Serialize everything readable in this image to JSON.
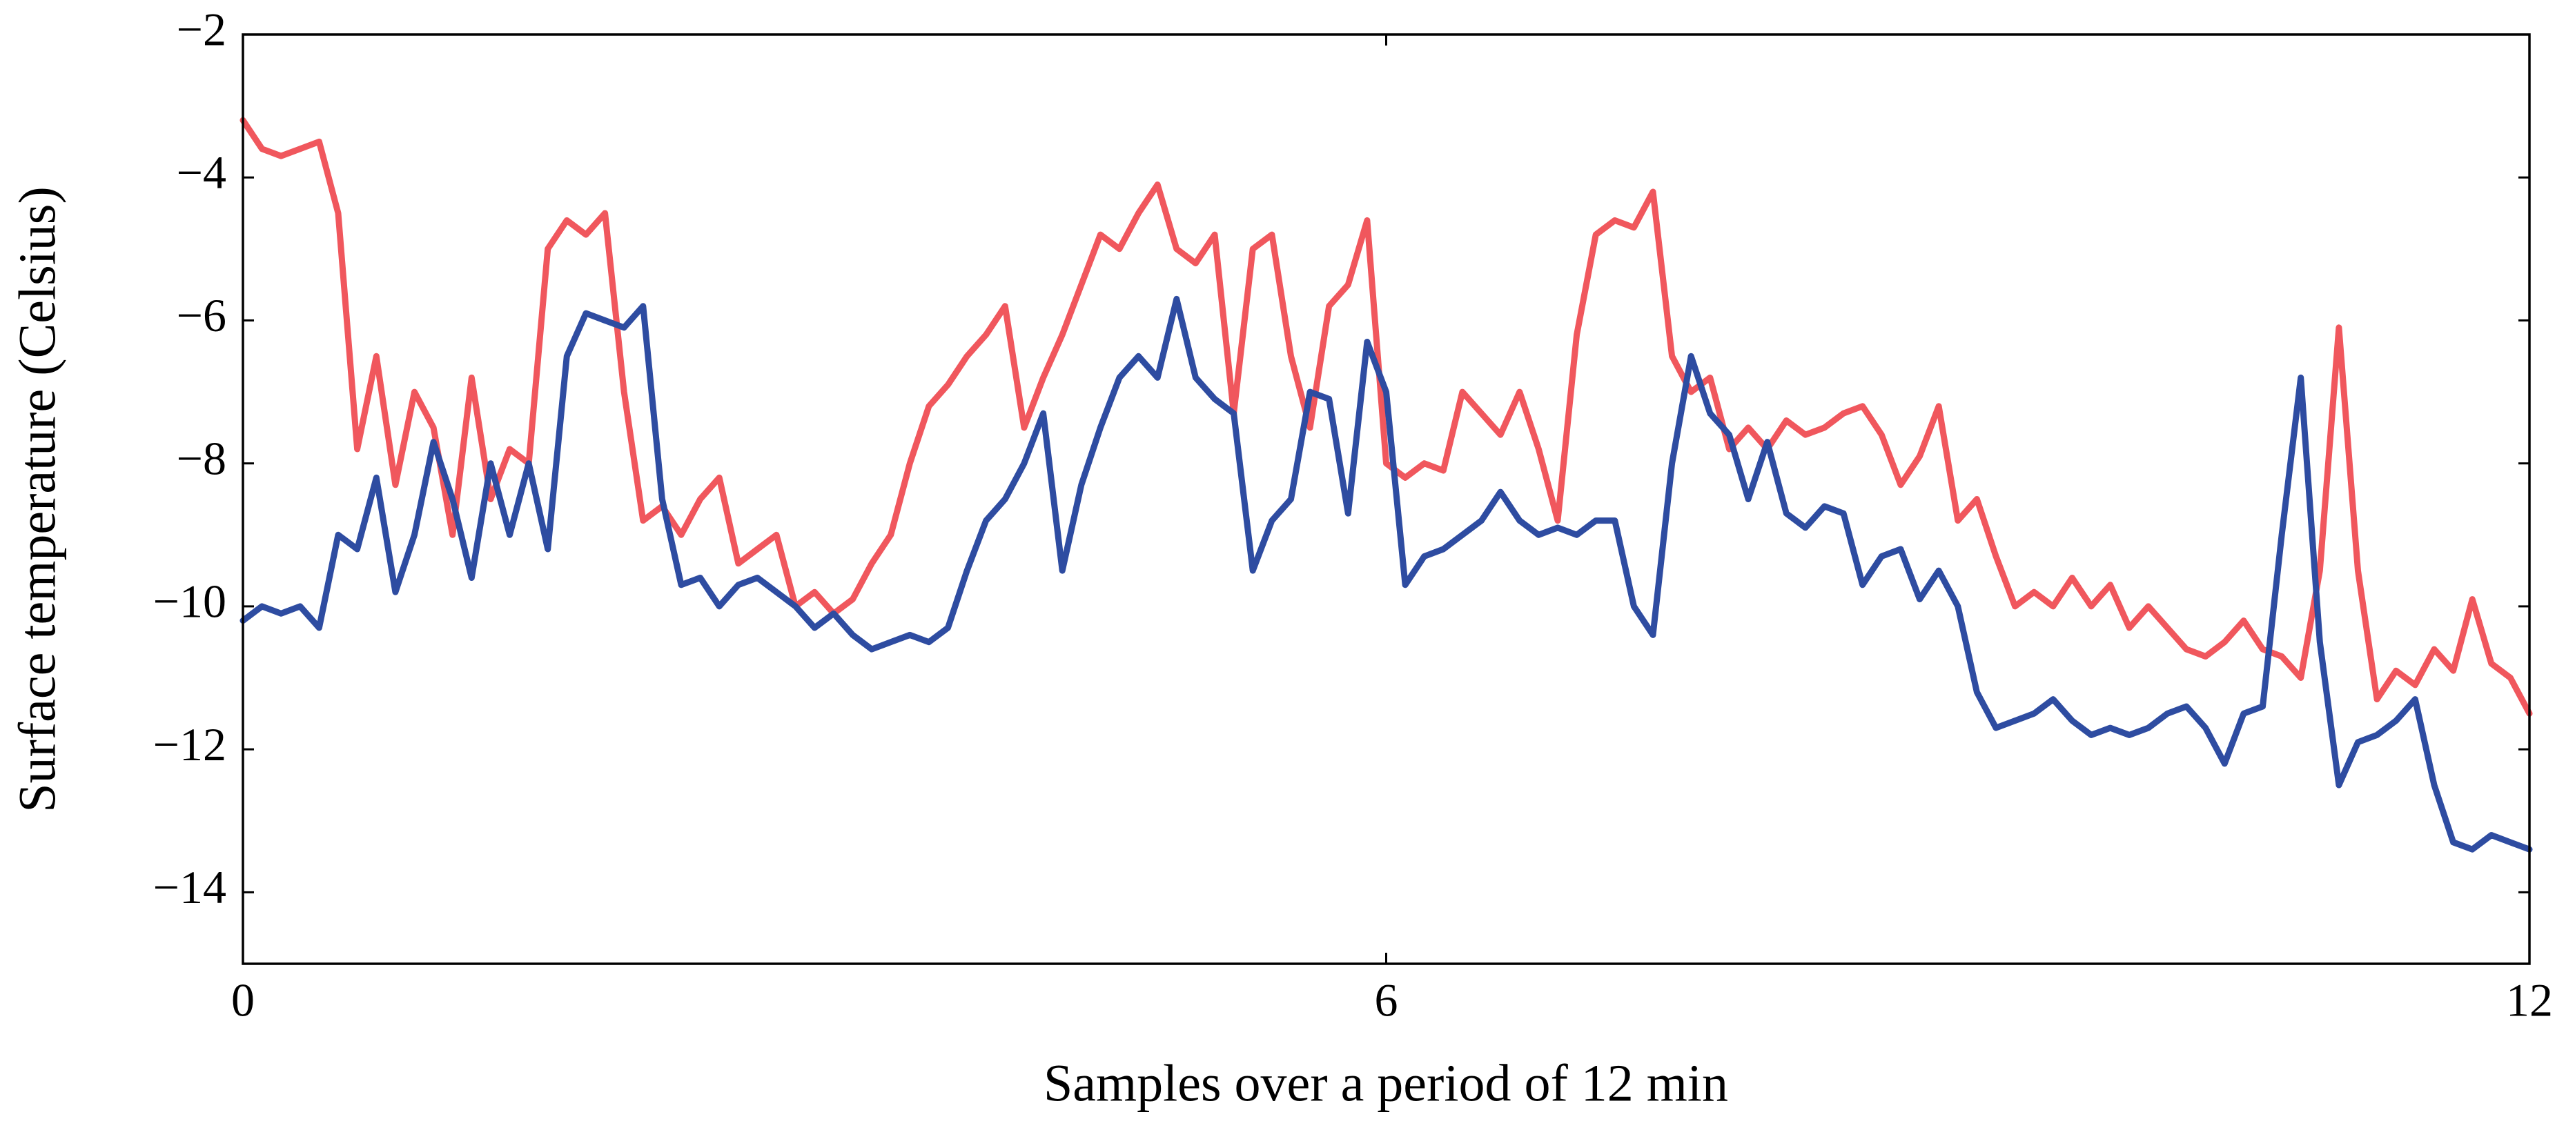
{
  "chart_data": {
    "type": "line",
    "xlabel": "Samples over a period of 12 min",
    "ylabel": "Surface temperature (Celsius)",
    "xlim": [
      0,
      12
    ],
    "xticks": [
      0,
      6,
      12
    ],
    "ylim": [
      -15,
      -2
    ],
    "yticks": [
      {
        "value": -14,
        "label": "−14"
      },
      {
        "value": -12,
        "label": "−12"
      },
      {
        "value": -10,
        "label": "−10"
      },
      {
        "value": -8,
        "label": "−8"
      },
      {
        "value": -6,
        "label": "−6"
      },
      {
        "value": -4,
        "label": "−4"
      },
      {
        "value": -2,
        "label": "−2"
      }
    ],
    "grid": false,
    "x": [
      0,
      0.1,
      0.2,
      0.3,
      0.4,
      0.5,
      0.6,
      0.7,
      0.8,
      0.9,
      1,
      1.1,
      1.2,
      1.3,
      1.4,
      1.5,
      1.6,
      1.7,
      1.8,
      1.9,
      2,
      2.1,
      2.2,
      2.3,
      2.4,
      2.5,
      2.6,
      2.7,
      2.8,
      2.9,
      3,
      3.1,
      3.2,
      3.3,
      3.4,
      3.5,
      3.6,
      3.7,
      3.8,
      3.9,
      4,
      4.1,
      4.2,
      4.3,
      4.4,
      4.5,
      4.6,
      4.7,
      4.8,
      4.9,
      5,
      5.1,
      5.2,
      5.3,
      5.4,
      5.5,
      5.6,
      5.7,
      5.8,
      5.9,
      6,
      6.1,
      6.2,
      6.3,
      6.4,
      6.5,
      6.6,
      6.7,
      6.8,
      6.9,
      7,
      7.1,
      7.2,
      7.3,
      7.4,
      7.5,
      7.6,
      7.7,
      7.8,
      7.9,
      8,
      8.1,
      8.2,
      8.3,
      8.4,
      8.5,
      8.6,
      8.7,
      8.8,
      8.9,
      9,
      9.1,
      9.2,
      9.3,
      9.4,
      9.5,
      9.6,
      9.7,
      9.8,
      9.9,
      10,
      10.1,
      10.2,
      10.3,
      10.4,
      10.5,
      10.6,
      10.7,
      10.8,
      10.9,
      11,
      11.1,
      11.2,
      11.3,
      11.4,
      11.5,
      11.6,
      11.7,
      11.8,
      11.9,
      12
    ],
    "series": [
      {
        "color": "#f0575d",
        "values": [
          -3.2,
          -3.6,
          -3.7,
          -3.6,
          -3.5,
          -4.5,
          -7.8,
          -6.5,
          -8.3,
          -7.0,
          -7.5,
          -9.0,
          -6.8,
          -8.5,
          -7.8,
          -8.0,
          -5.0,
          -4.6,
          -4.8,
          -4.5,
          -7.0,
          -8.8,
          -8.6,
          -9.0,
          -8.5,
          -8.2,
          -9.4,
          -9.2,
          -9.0,
          -10.0,
          -9.8,
          -10.1,
          -9.9,
          -9.4,
          -9.0,
          -8.0,
          -7.2,
          -6.9,
          -6.5,
          -6.2,
          -5.8,
          -7.5,
          -6.8,
          -6.2,
          -5.5,
          -4.8,
          -5.0,
          -4.5,
          -4.1,
          -5.0,
          -5.2,
          -4.8,
          -7.3,
          -5.0,
          -4.8,
          -6.5,
          -7.5,
          -5.8,
          -5.5,
          -4.6,
          -8.0,
          -8.2,
          -8.0,
          -8.1,
          -7.0,
          -7.3,
          -7.6,
          -7.0,
          -7.8,
          -8.8,
          -6.2,
          -4.8,
          -4.6,
          -4.7,
          -4.2,
          -6.5,
          -7.0,
          -6.8,
          -7.8,
          -7.5,
          -7.8,
          -7.4,
          -7.6,
          -7.5,
          -7.3,
          -7.2,
          -7.6,
          -8.3,
          -7.9,
          -7.2,
          -8.8,
          -8.5,
          -9.3,
          -10.0,
          -9.8,
          -10.0,
          -9.6,
          -10.0,
          -9.7,
          -10.3,
          -10.0,
          -10.3,
          -10.6,
          -10.7,
          -10.5,
          -10.2,
          -10.6,
          -10.7,
          -11.0,
          -9.5,
          -6.1,
          -9.5,
          -11.3,
          -10.9,
          -11.1,
          -10.6,
          -10.9,
          -9.9,
          -10.8,
          -11.0,
          -11.5
        ]
      },
      {
        "color": "#2e4ca1",
        "values": [
          -10.2,
          -10.0,
          -10.1,
          -10.0,
          -10.3,
          -9.0,
          -9.2,
          -8.2,
          -9.8,
          -9.0,
          -7.7,
          -8.5,
          -9.6,
          -8.0,
          -9.0,
          -8.0,
          -9.2,
          -6.5,
          -5.9,
          -6.0,
          -6.1,
          -5.8,
          -8.5,
          -9.7,
          -9.6,
          -10.0,
          -9.7,
          -9.6,
          -9.8,
          -10.0,
          -10.3,
          -10.1,
          -10.4,
          -10.6,
          -10.5,
          -10.4,
          -10.5,
          -10.3,
          -9.5,
          -8.8,
          -8.5,
          -8.0,
          -7.3,
          -9.5,
          -8.3,
          -7.5,
          -6.8,
          -6.5,
          -6.8,
          -5.7,
          -6.8,
          -7.1,
          -7.3,
          -9.5,
          -8.8,
          -8.5,
          -7.0,
          -7.1,
          -8.7,
          -6.3,
          -7.0,
          -9.7,
          -9.3,
          -9.2,
          -9.0,
          -8.8,
          -8.4,
          -8.8,
          -9.0,
          -8.9,
          -9.0,
          -8.8,
          -8.8,
          -10.0,
          -10.4,
          -8.0,
          -6.5,
          -7.3,
          -7.6,
          -8.5,
          -7.7,
          -8.7,
          -8.9,
          -8.6,
          -8.7,
          -9.7,
          -9.3,
          -9.2,
          -9.9,
          -9.5,
          -10.0,
          -11.2,
          -11.7,
          -11.6,
          -11.5,
          -11.3,
          -11.6,
          -11.8,
          -11.7,
          -11.8,
          -11.7,
          -11.5,
          -11.4,
          -11.7,
          -12.2,
          -11.5,
          -11.4,
          -9.0,
          -6.8,
          -10.5,
          -12.5,
          -11.9,
          -11.8,
          -11.6,
          -11.3,
          -12.5,
          -13.3,
          -13.4,
          -13.2,
          -13.3,
          -13.4
        ]
      }
    ]
  }
}
